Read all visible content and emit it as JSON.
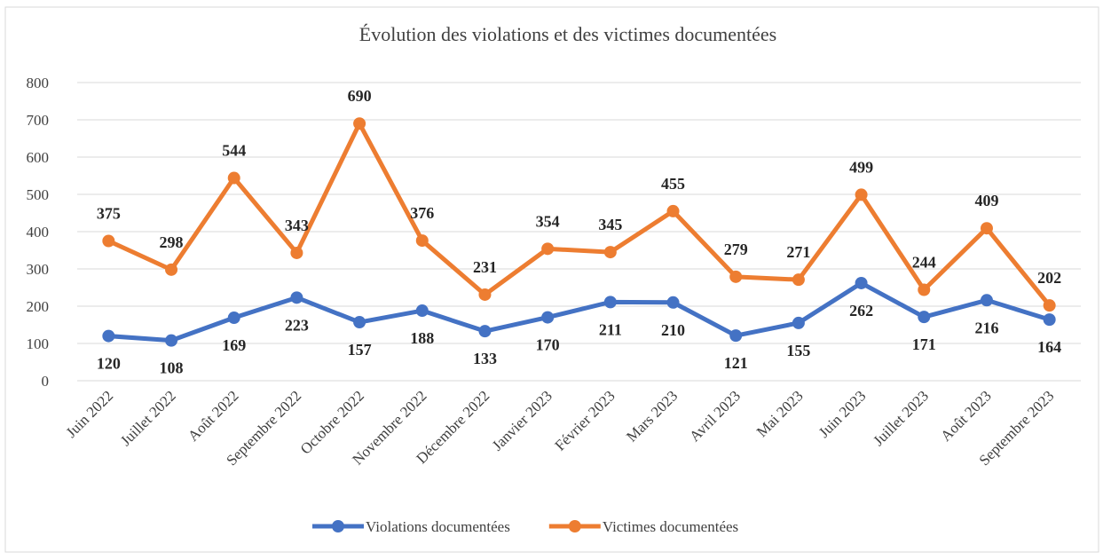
{
  "chart_data": {
    "type": "line",
    "title": "Évolution des violations et des victimes documentées",
    "categories": [
      "Juin 2022",
      "Juillet 2022",
      "Août 2022",
      "Septembre 2022",
      "Octobre 2022",
      "Novembre 2022",
      "Décembre 2022",
      "Janvier 2023",
      "Février 2023",
      "Mars 2023",
      "Avril 2023",
      "Mai 2023",
      "Juin 2023",
      "Juillet 2023",
      "Août 2023",
      "Septembre 2023"
    ],
    "series": [
      {
        "name": "Violations documentées",
        "color": "#4472c4",
        "values": [
          120,
          108,
          169,
          223,
          157,
          188,
          133,
          170,
          211,
          210,
          121,
          155,
          262,
          171,
          216,
          164
        ]
      },
      {
        "name": "Victimes documentées",
        "color": "#ed7d31",
        "values": [
          375,
          298,
          544,
          343,
          690,
          376,
          231,
          354,
          345,
          455,
          279,
          271,
          499,
          244,
          409,
          202
        ]
      }
    ],
    "ylim": [
      0,
      800
    ],
    "yticks": [
      0,
      100,
      200,
      300,
      400,
      500,
      600,
      700,
      800
    ],
    "grid": true,
    "legend": "bottom"
  }
}
